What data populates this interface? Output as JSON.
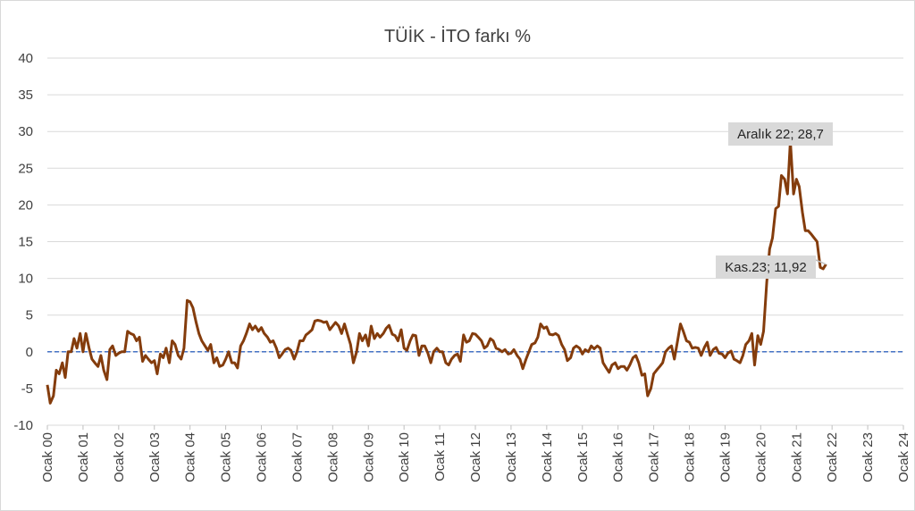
{
  "chart_data": {
    "type": "line",
    "title": "TÜİK - İTO farkı %",
    "xlabel": "",
    "ylabel": "",
    "ylim": [
      -10,
      40
    ],
    "yticks": [
      40,
      35,
      30,
      25,
      20,
      15,
      10,
      5,
      0,
      -5,
      -10
    ],
    "x_tick_labels": [
      "Ocak 00",
      "Ocak 01",
      "Ocak 02",
      "Ocak 03",
      "Ocak 04",
      "Ocak 05",
      "Ocak 06",
      "Ocak 07",
      "Ocak 08",
      "Ocak 09",
      "Ocak 10",
      "Ocak 11",
      "Ocak 12",
      "Ocak 13",
      "Ocak 14",
      "Ocak 15",
      "Ocak 16",
      "Ocak 17",
      "Ocak 18",
      "Ocak 19",
      "Ocak 20",
      "Ocak 21",
      "Ocak 22",
      "Ocak 23",
      "Ocak 24"
    ],
    "x_range": [
      "Ocak 00",
      "Ocak 24"
    ],
    "grid": "horizontal",
    "legend": "none",
    "zero_line": {
      "y": 0,
      "style": "dashed",
      "color": "#4472c4"
    },
    "series": [
      {
        "color": "#843c0c",
        "x": [
          "Ocak 00",
          "Kas.23"
        ],
        "points": [
          [
            0.0,
            -4.5
          ],
          [
            0.08,
            -7
          ],
          [
            0.17,
            -6
          ],
          [
            0.25,
            -2.5
          ],
          [
            0.33,
            -3
          ],
          [
            0.42,
            -1.5
          ],
          [
            0.5,
            -3.5
          ],
          [
            0.58,
            0
          ],
          [
            0.67,
            0
          ],
          [
            0.75,
            1.8
          ],
          [
            0.83,
            0.5
          ],
          [
            0.92,
            2.5
          ],
          [
            1.0,
            0
          ],
          [
            1.08,
            2.5
          ],
          [
            1.17,
            0.5
          ],
          [
            1.25,
            -1
          ],
          [
            1.33,
            -1.5
          ],
          [
            1.42,
            -2
          ],
          [
            1.5,
            -0.5
          ],
          [
            1.58,
            -2.5
          ],
          [
            1.67,
            -3.8
          ],
          [
            1.75,
            0.3
          ],
          [
            1.83,
            0.8
          ],
          [
            1.92,
            -0.5
          ],
          [
            2.0,
            -0.2
          ],
          [
            2.08,
            0
          ],
          [
            2.17,
            0
          ],
          [
            2.25,
            2.8
          ],
          [
            2.33,
            2.5
          ],
          [
            2.42,
            2.3
          ],
          [
            2.5,
            1.5
          ],
          [
            2.58,
            2
          ],
          [
            2.67,
            -1.3
          ],
          [
            2.75,
            -0.5
          ],
          [
            2.83,
            -1
          ],
          [
            2.92,
            -1.5
          ],
          [
            3.0,
            -1.2
          ],
          [
            3.08,
            -3
          ],
          [
            3.17,
            -0.3
          ],
          [
            3.25,
            -0.8
          ],
          [
            3.33,
            0.5
          ],
          [
            3.42,
            -1.5
          ],
          [
            3.5,
            1.5
          ],
          [
            3.58,
            1
          ],
          [
            3.67,
            -0.5
          ],
          [
            3.75,
            -1
          ],
          [
            3.83,
            0.5
          ],
          [
            3.92,
            7
          ],
          [
            4.0,
            6.8
          ],
          [
            4.08,
            6
          ],
          [
            4.17,
            4
          ],
          [
            4.25,
            2.5
          ],
          [
            4.33,
            1.5
          ],
          [
            4.42,
            0.8
          ],
          [
            4.5,
            0.2
          ],
          [
            4.58,
            1
          ],
          [
            4.67,
            -1.5
          ],
          [
            4.75,
            -0.8
          ],
          [
            4.83,
            -2
          ],
          [
            4.92,
            -1.8
          ],
          [
            5.0,
            -1
          ],
          [
            5.08,
            0
          ],
          [
            5.17,
            -1.5
          ],
          [
            5.25,
            -1.5
          ],
          [
            5.33,
            -2.2
          ],
          [
            5.42,
            0.8
          ],
          [
            5.5,
            1.5
          ],
          [
            5.58,
            2.5
          ],
          [
            5.67,
            3.8
          ],
          [
            5.75,
            3
          ],
          [
            5.83,
            3.5
          ],
          [
            5.92,
            2.8
          ],
          [
            6.0,
            3.3
          ],
          [
            6.08,
            2.5
          ],
          [
            6.17,
            2
          ],
          [
            6.25,
            1.3
          ],
          [
            6.33,
            1.5
          ],
          [
            6.42,
            0.5
          ],
          [
            6.5,
            -0.8
          ],
          [
            6.58,
            -0.3
          ],
          [
            6.67,
            0.3
          ],
          [
            6.75,
            0.5
          ],
          [
            6.83,
            0.2
          ],
          [
            6.92,
            -1
          ],
          [
            7.0,
            0
          ],
          [
            7.08,
            1.5
          ],
          [
            7.17,
            1.5
          ],
          [
            7.25,
            2.3
          ],
          [
            7.33,
            2.6
          ],
          [
            7.42,
            3
          ],
          [
            7.5,
            4.2
          ],
          [
            7.58,
            4.3
          ],
          [
            7.67,
            4.2
          ],
          [
            7.75,
            4
          ],
          [
            7.83,
            4.1
          ],
          [
            7.92,
            3
          ],
          [
            8.0,
            3.5
          ],
          [
            8.08,
            4
          ],
          [
            8.17,
            3.5
          ],
          [
            8.25,
            2.5
          ],
          [
            8.33,
            3.8
          ],
          [
            8.42,
            2.3
          ],
          [
            8.5,
            1
          ],
          [
            8.58,
            -1.5
          ],
          [
            8.67,
            0
          ],
          [
            8.75,
            2.5
          ],
          [
            8.83,
            1.5
          ],
          [
            8.92,
            2.3
          ],
          [
            9.0,
            0.8
          ],
          [
            9.08,
            3.5
          ],
          [
            9.17,
            1.8
          ],
          [
            9.25,
            2.5
          ],
          [
            9.33,
            2
          ],
          [
            9.42,
            2.5
          ],
          [
            9.5,
            3.2
          ],
          [
            9.58,
            3.6
          ],
          [
            9.67,
            2.4
          ],
          [
            9.75,
            2.2
          ],
          [
            9.83,
            1.5
          ],
          [
            9.92,
            3
          ],
          [
            10.0,
            0.5
          ],
          [
            10.08,
            0.2
          ],
          [
            10.17,
            1.5
          ],
          [
            10.25,
            2.3
          ],
          [
            10.33,
            2.2
          ],
          [
            10.42,
            -0.5
          ],
          [
            10.5,
            0.8
          ],
          [
            10.58,
            0.8
          ],
          [
            10.67,
            -0.2
          ],
          [
            10.75,
            -1.5
          ],
          [
            10.83,
            0
          ],
          [
            10.92,
            0.5
          ],
          [
            11.0,
            0
          ],
          [
            11.08,
            0
          ],
          [
            11.17,
            -1.5
          ],
          [
            11.25,
            -1.8
          ],
          [
            11.33,
            -1
          ],
          [
            11.42,
            -0.5
          ],
          [
            11.5,
            -0.3
          ],
          [
            11.58,
            -1.3
          ],
          [
            11.67,
            2.3
          ],
          [
            11.75,
            1.3
          ],
          [
            11.83,
            1.5
          ],
          [
            11.92,
            2.5
          ],
          [
            12.0,
            2.4
          ],
          [
            12.08,
            2
          ],
          [
            12.17,
            1.5
          ],
          [
            12.25,
            0.5
          ],
          [
            12.33,
            0.8
          ],
          [
            12.42,
            1.8
          ],
          [
            12.5,
            1.5
          ],
          [
            12.58,
            0.5
          ],
          [
            12.67,
            0.3
          ],
          [
            12.75,
            0
          ],
          [
            12.83,
            0.3
          ],
          [
            12.92,
            -0.3
          ],
          [
            13.0,
            -0.2
          ],
          [
            13.08,
            0.3
          ],
          [
            13.17,
            -0.5
          ],
          [
            13.25,
            -1
          ],
          [
            13.33,
            -2.3
          ],
          [
            13.42,
            -1
          ],
          [
            13.5,
            0
          ],
          [
            13.58,
            1
          ],
          [
            13.67,
            1.2
          ],
          [
            13.75,
            2
          ],
          [
            13.83,
            3.8
          ],
          [
            13.92,
            3.2
          ],
          [
            14.0,
            3.4
          ],
          [
            14.08,
            2.4
          ],
          [
            14.17,
            2.3
          ],
          [
            14.25,
            2.5
          ],
          [
            14.33,
            2.2
          ],
          [
            14.42,
            1
          ],
          [
            14.5,
            0.3
          ],
          [
            14.58,
            -1.2
          ],
          [
            14.67,
            -0.8
          ],
          [
            14.75,
            0.5
          ],
          [
            14.83,
            0.8
          ],
          [
            14.92,
            0.5
          ],
          [
            15.0,
            -0.3
          ],
          [
            15.08,
            0.3
          ],
          [
            15.17,
            0
          ],
          [
            15.25,
            0.8
          ],
          [
            15.33,
            0.4
          ],
          [
            15.42,
            0.8
          ],
          [
            15.5,
            0.5
          ],
          [
            15.58,
            -1.5
          ],
          [
            15.67,
            -2.2
          ],
          [
            15.75,
            -2.8
          ],
          [
            15.83,
            -1.8
          ],
          [
            15.92,
            -1.5
          ],
          [
            16.0,
            -2.3
          ],
          [
            16.08,
            -2
          ],
          [
            16.17,
            -2
          ],
          [
            16.25,
            -2.5
          ],
          [
            16.33,
            -1.8
          ],
          [
            16.42,
            -0.8
          ],
          [
            16.5,
            -0.5
          ],
          [
            16.58,
            -1.5
          ],
          [
            16.67,
            -3.2
          ],
          [
            16.75,
            -3
          ],
          [
            16.83,
            -6
          ],
          [
            16.92,
            -5
          ],
          [
            17.0,
            -3
          ],
          [
            17.08,
            -2.5
          ],
          [
            17.17,
            -2
          ],
          [
            17.25,
            -1.5
          ],
          [
            17.33,
            0
          ],
          [
            17.42,
            0.5
          ],
          [
            17.5,
            0.8
          ],
          [
            17.58,
            -1
          ],
          [
            17.67,
            1.5
          ],
          [
            17.75,
            3.8
          ],
          [
            17.83,
            2.8
          ],
          [
            17.92,
            1.5
          ],
          [
            18.0,
            1.3
          ],
          [
            18.08,
            0.5
          ],
          [
            18.17,
            0.6
          ],
          [
            18.25,
            0.5
          ],
          [
            18.33,
            -0.5
          ],
          [
            18.42,
            0.6
          ],
          [
            18.5,
            1.3
          ],
          [
            18.58,
            -0.5
          ],
          [
            18.67,
            0.3
          ],
          [
            18.75,
            0.6
          ],
          [
            18.83,
            -0.2
          ],
          [
            18.92,
            -0.3
          ],
          [
            19.0,
            -0.8
          ],
          [
            19.08,
            -0.2
          ],
          [
            19.17,
            0.1
          ],
          [
            19.25,
            -1
          ],
          [
            19.33,
            -1.2
          ],
          [
            19.42,
            -1.5
          ],
          [
            19.5,
            -0.5
          ],
          [
            19.58,
            1
          ],
          [
            19.67,
            1.5
          ],
          [
            19.75,
            2.5
          ],
          [
            19.83,
            -1.8
          ],
          [
            19.92,
            2.2
          ],
          [
            20.0,
            1
          ],
          [
            20.08,
            2.8
          ],
          [
            20.17,
            9.5
          ],
          [
            20.25,
            14
          ],
          [
            20.33,
            15.5
          ],
          [
            20.42,
            19.5
          ],
          [
            20.5,
            19.8
          ],
          [
            20.58,
            24
          ],
          [
            20.67,
            23.5
          ],
          [
            20.75,
            21.5
          ],
          [
            20.83,
            28.7
          ],
          [
            20.92,
            21.5
          ],
          [
            21.0,
            23.5
          ],
          [
            21.08,
            22.5
          ],
          [
            21.17,
            19
          ],
          [
            21.25,
            16.5
          ],
          [
            21.33,
            16.5
          ],
          [
            21.42,
            16
          ],
          [
            21.5,
            15.5
          ],
          [
            21.58,
            15
          ],
          [
            21.67,
            11.5
          ],
          [
            21.75,
            11.3
          ],
          [
            21.83,
            11.92
          ]
        ]
      }
    ],
    "annotations": [
      {
        "text": "Aralık 22; 28,7",
        "x": "Aralık 22",
        "y": 28.7
      },
      {
        "text": "Kas.23; 11,92",
        "x": "Kas.23",
        "y": 11.92
      }
    ]
  }
}
